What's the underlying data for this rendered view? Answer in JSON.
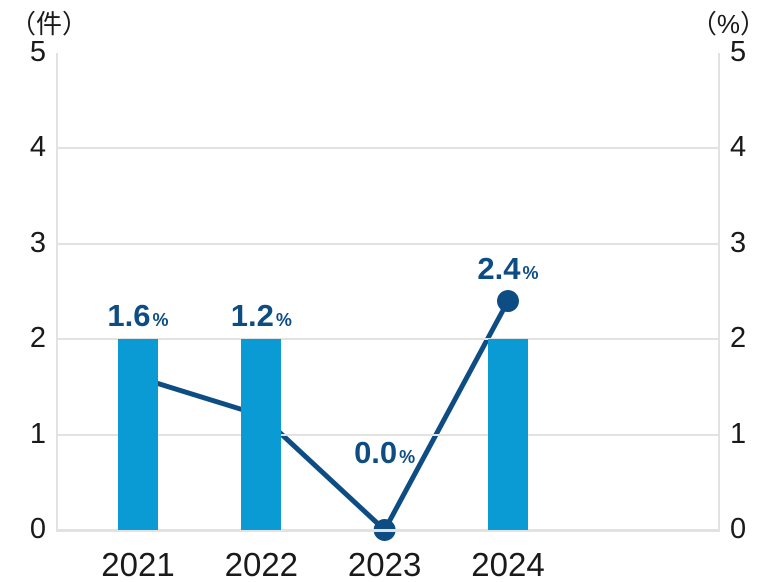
{
  "chart_data": {
    "type": "bar+line combo",
    "categories": [
      "2021",
      "2022",
      "2023",
      "2024"
    ],
    "series": [
      {
        "name": "count-bars",
        "type": "bar",
        "axis": "left",
        "values": [
          2,
          2,
          0,
          2
        ],
        "color": "#0a9bd4"
      },
      {
        "name": "rate-line",
        "type": "line",
        "axis": "right",
        "values": [
          1.6,
          1.2,
          0.0,
          2.4
        ],
        "point_labels": [
          "1.6",
          "1.2",
          "0.0",
          "2.4"
        ],
        "point_label_suffix": "%",
        "color": "#0d4d84"
      }
    ],
    "left_axis": {
      "title": "（件）",
      "min": 0,
      "max": 5,
      "ticks": [
        "0",
        "1",
        "2",
        "3",
        "4",
        "5"
      ]
    },
    "right_axis": {
      "title": "（%）",
      "min": 0,
      "max": 5,
      "ticks": [
        "0",
        "1",
        "2",
        "3",
        "4",
        "5"
      ]
    },
    "grid": true,
    "gridline_values": [
      1,
      2,
      3,
      4
    ],
    "legend": "none"
  },
  "colors": {
    "bar": "#0a9bd4",
    "line": "#0d4d84",
    "point_label_text": "#0d4d84",
    "gridline": "#e2e2e2",
    "tick_text": "#1a1a1a",
    "background": "#ffffff"
  }
}
